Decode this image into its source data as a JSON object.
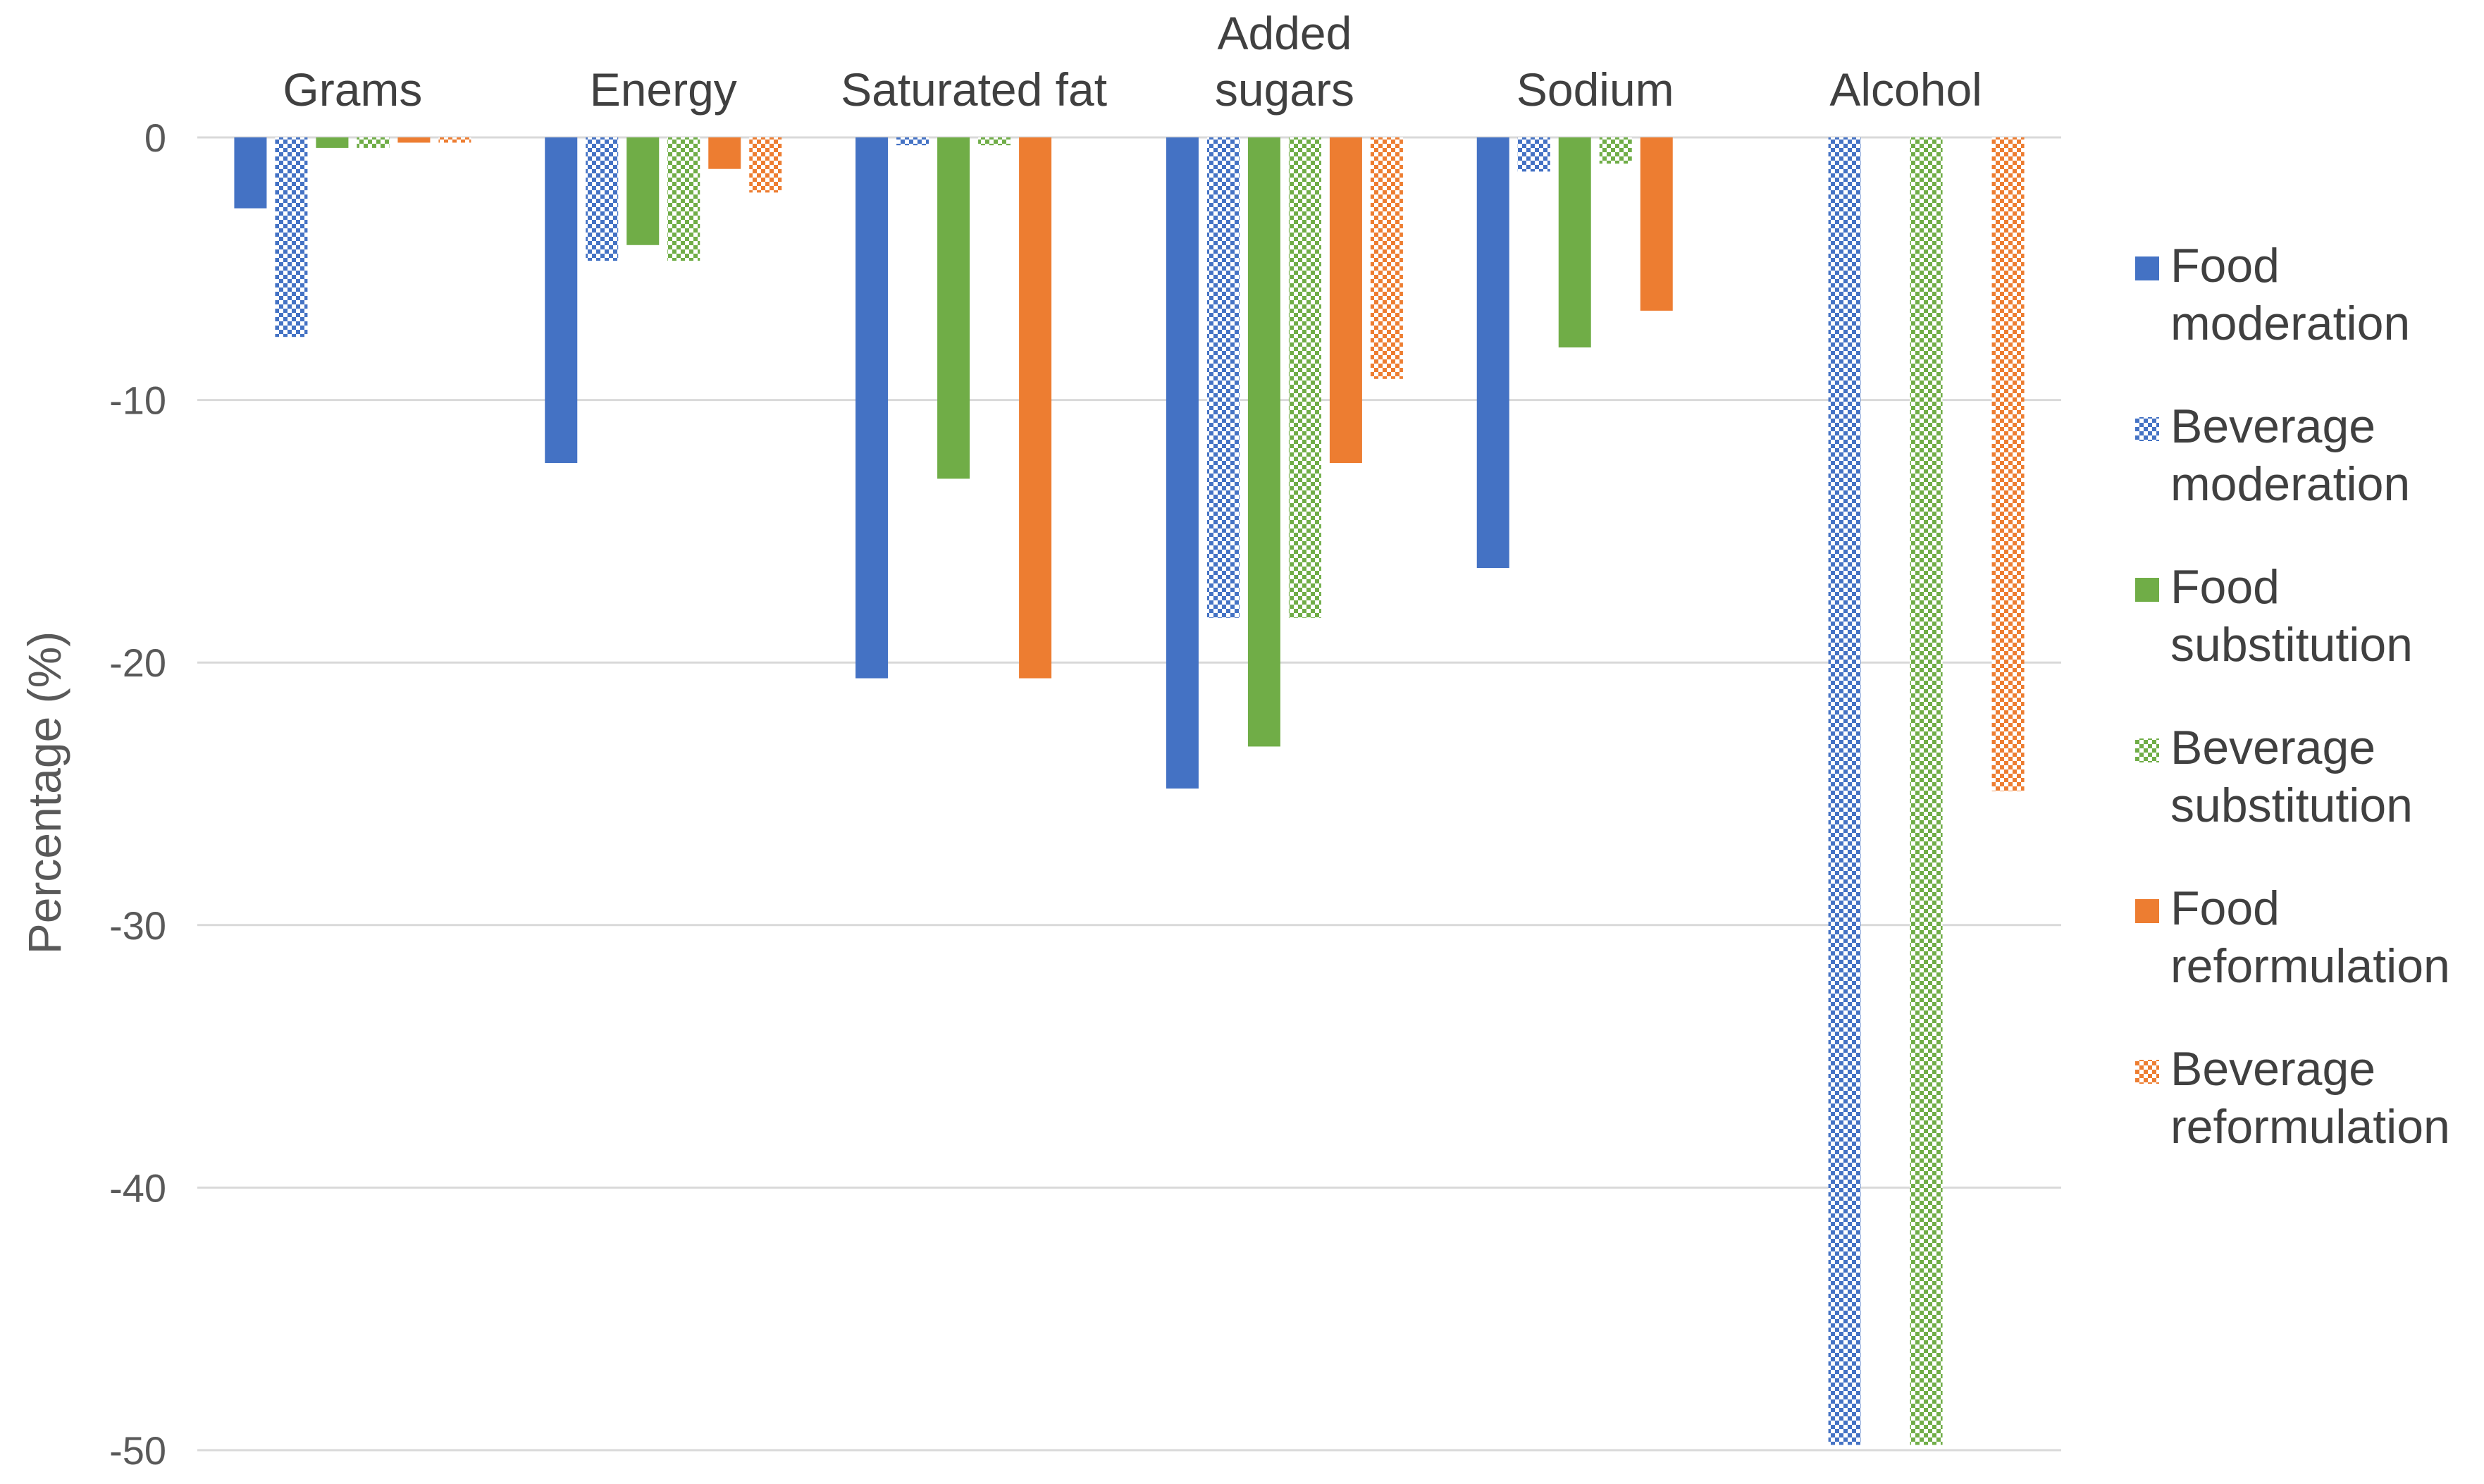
{
  "chart_data": {
    "type": "bar",
    "title": "",
    "xlabel": "",
    "ylabel": "Percentage (%)",
    "ylim": [
      -50,
      0
    ],
    "yticks": [
      0,
      -10,
      -20,
      -30,
      -40,
      -50
    ],
    "grid": true,
    "legend_position": "right",
    "categories": [
      [
        "Grams"
      ],
      [
        "Energy"
      ],
      [
        "Saturated fat"
      ],
      [
        "Added",
        "sugars"
      ],
      [
        "Sodium"
      ],
      [
        "Alcohol"
      ]
    ],
    "series": [
      {
        "name": [
          "Food",
          "moderation"
        ],
        "color": "#4472C4",
        "pattern": "solid",
        "values": [
          -2.7,
          -12.4,
          -20.6,
          -24.8,
          -16.4,
          0
        ]
      },
      {
        "name": [
          "Beverage",
          "moderation"
        ],
        "color": "#4472C4",
        "pattern": "checker",
        "values": [
          -7.6,
          -4.7,
          -0.3,
          -18.3,
          -1.3,
          -49.8
        ]
      },
      {
        "name": [
          "Food",
          "substitution"
        ],
        "color": "#70AD47",
        "pattern": "solid",
        "values": [
          -0.4,
          -4.1,
          -13.0,
          -23.2,
          -8.0,
          0
        ]
      },
      {
        "name": [
          "Beverage",
          "substitution"
        ],
        "color": "#70AD47",
        "pattern": "checker",
        "values": [
          -0.4,
          -4.7,
          -0.3,
          -18.3,
          -1.0,
          -49.8
        ]
      },
      {
        "name": [
          "Food",
          "reformulation"
        ],
        "color": "#ED7D31",
        "pattern": "solid",
        "values": [
          -0.2,
          -1.2,
          -20.6,
          -12.4,
          -6.6,
          0
        ]
      },
      {
        "name": [
          "Beverage",
          "reformulation"
        ],
        "color": "#ED7D31",
        "pattern": "checker",
        "values": [
          -0.2,
          -2.1,
          0,
          -9.2,
          0,
          -24.9
        ]
      }
    ]
  }
}
